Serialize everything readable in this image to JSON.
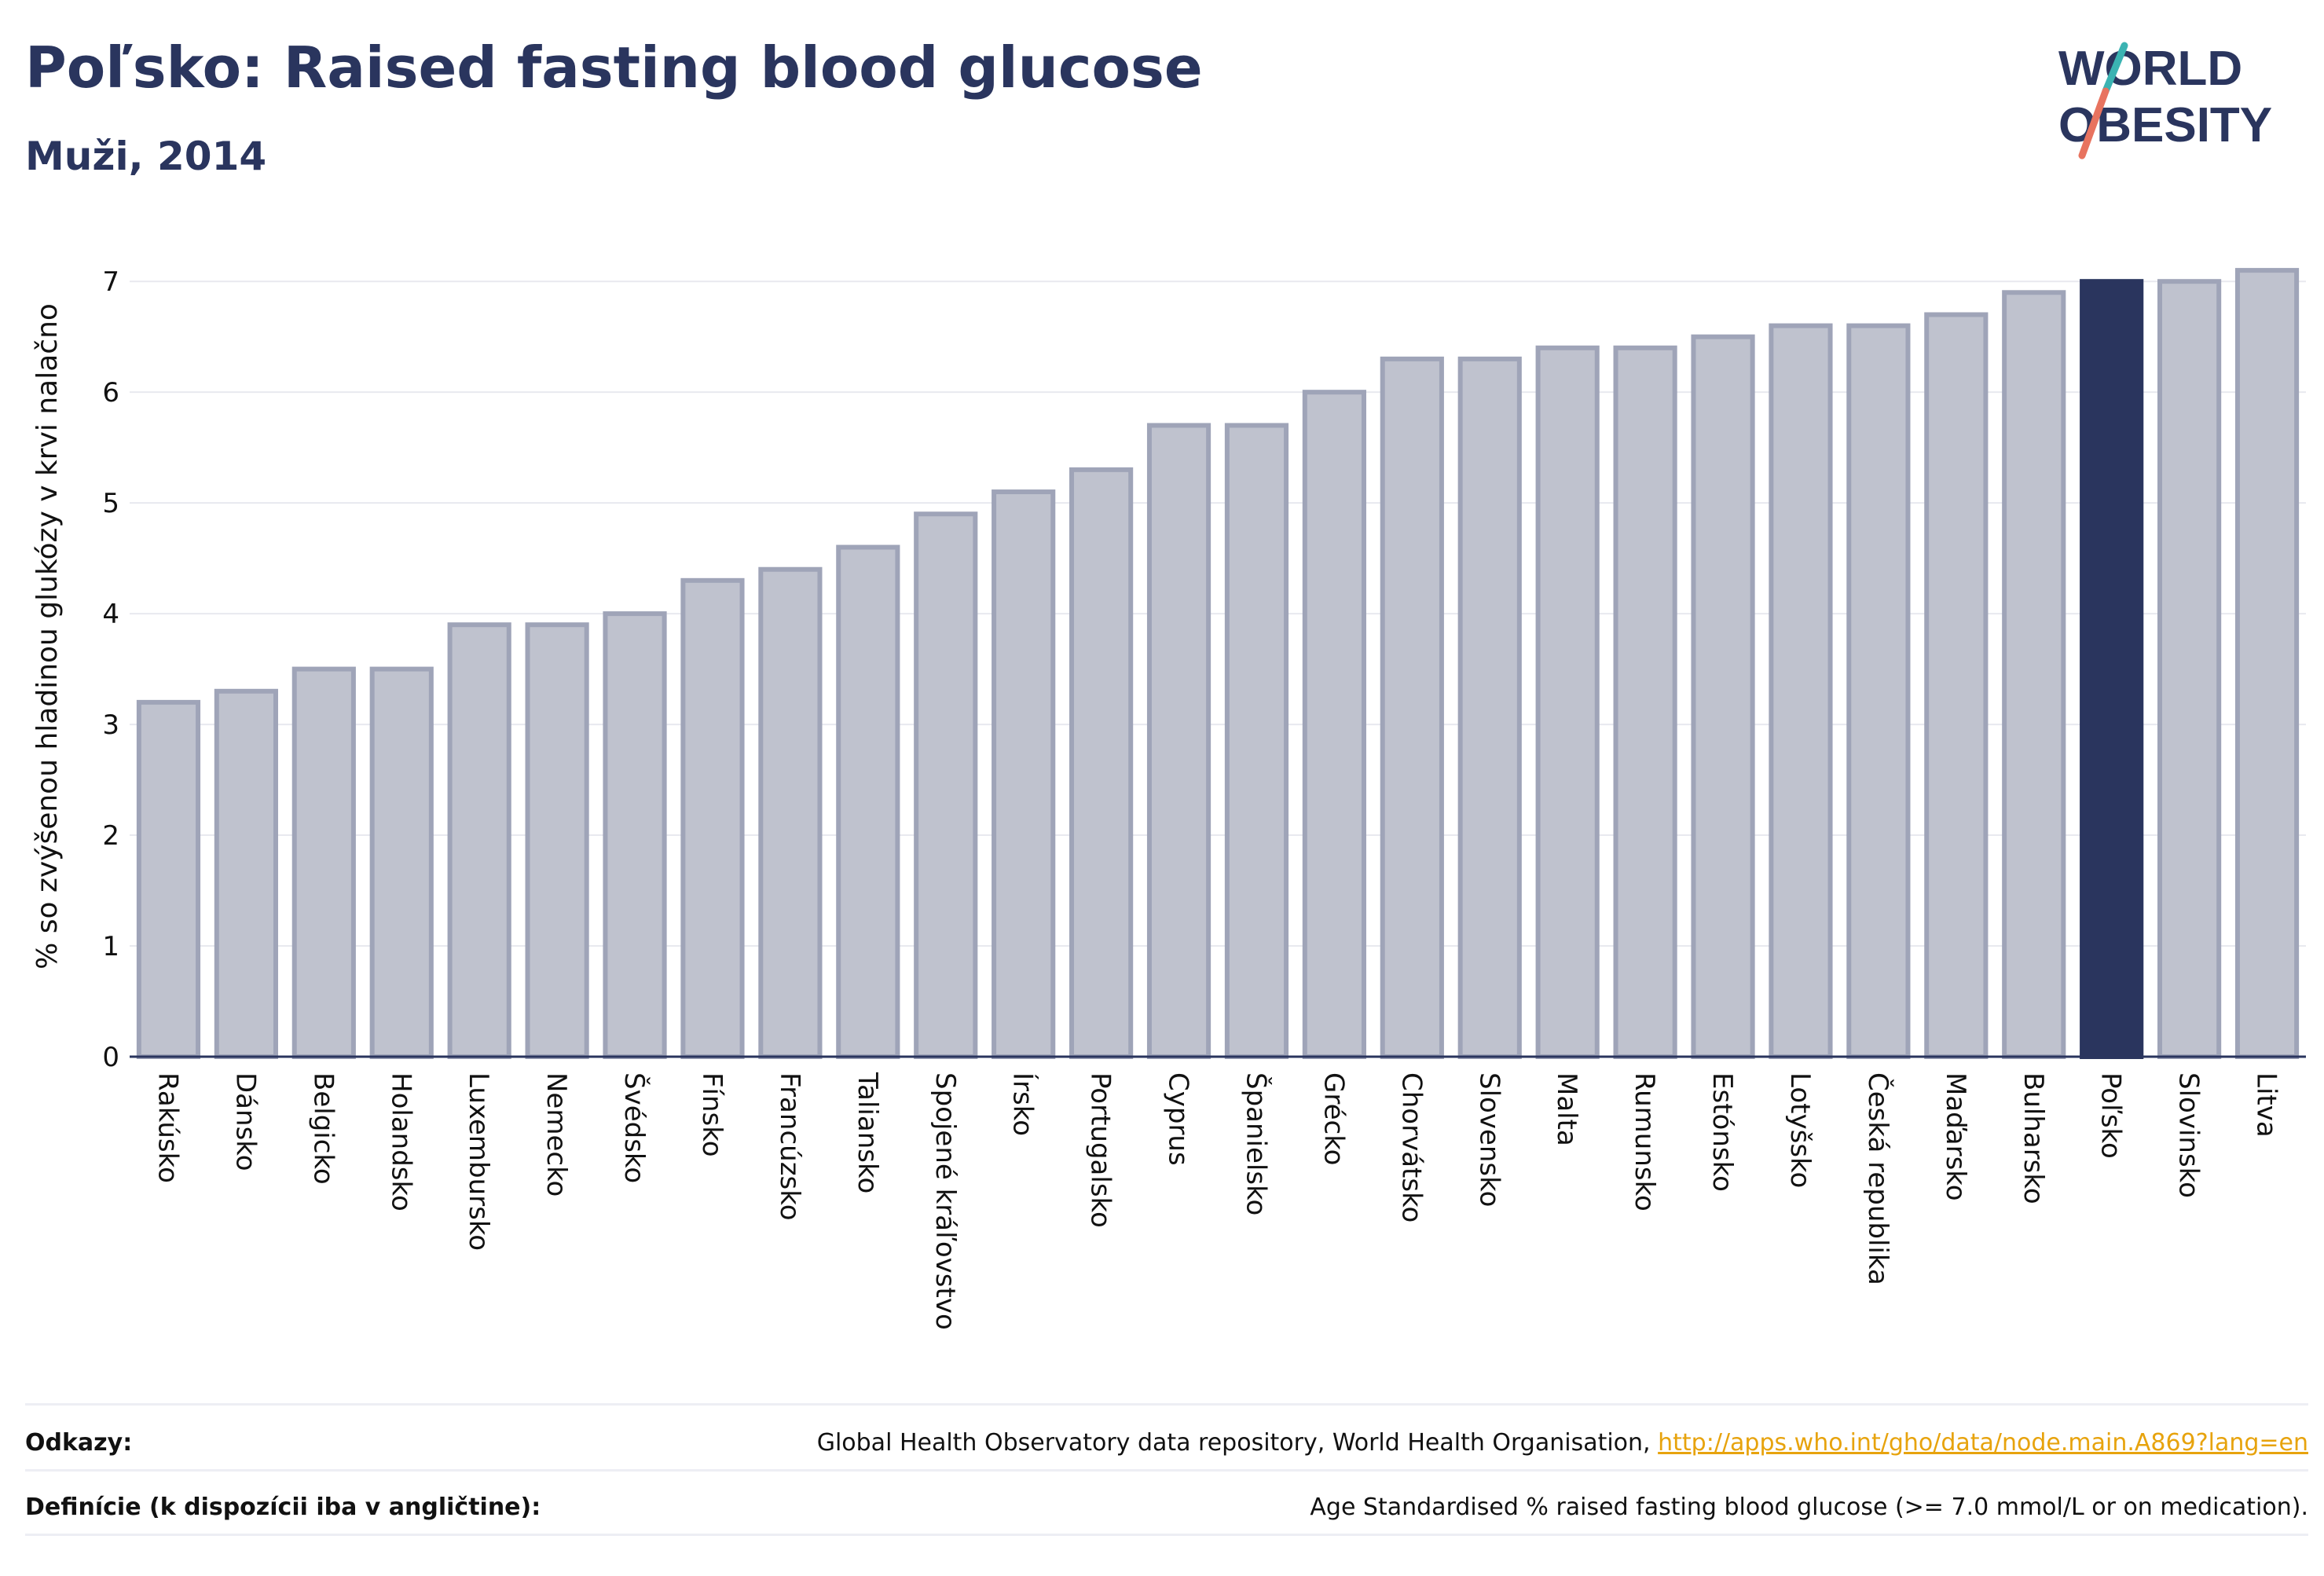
{
  "header": {
    "title": "Poľsko: Raised fasting blood glucose",
    "subtitle": "Muži, 2014"
  },
  "logo": {
    "line1": "WORLD",
    "line2": "OBESITY",
    "colors": {
      "text": "#2a355e",
      "slash_top": "#3bb3b2",
      "slash_bottom": "#e8735f"
    }
  },
  "chart_data": {
    "type": "bar",
    "ylabel": "% so zvýšenou hladinou glukózy v krvi nalačno",
    "xlabel": "",
    "ylim": [
      0,
      7.2
    ],
    "yticks": [
      0,
      1,
      2,
      3,
      4,
      5,
      6,
      7
    ],
    "grid": true,
    "highlight": "Poľsko",
    "colors": {
      "bar": "#bfc2ce",
      "bar_border": "#9fa4b8",
      "highlight": "#2a355e",
      "grid": "#e8e9ef",
      "axis": "#2a355e"
    },
    "categories": [
      "Rakúsko",
      "Dánsko",
      "Belgicko",
      "Holandsko",
      "Luxembursko",
      "Nemecko",
      "Švédsko",
      "Fínsko",
      "Francúzsko",
      "Taliansko",
      "Spojené kráľovstvo",
      "Írsko",
      "Portugalsko",
      "Cyprus",
      "Španielsko",
      "Grécko",
      "Chorvátsko",
      "Slovensko",
      "Malta",
      "Rumunsko",
      "Estónsko",
      "Lotyšsko",
      "Česká republika",
      "Maďarsko",
      "Bulharsko",
      "Poľsko",
      "Slovinsko",
      "Litva"
    ],
    "values": [
      3.2,
      3.3,
      3.5,
      3.5,
      3.9,
      3.9,
      4.0,
      4.3,
      4.4,
      4.6,
      4.9,
      5.1,
      5.3,
      5.7,
      5.7,
      6.0,
      6.3,
      6.3,
      6.4,
      6.4,
      6.5,
      6.6,
      6.6,
      6.7,
      6.9,
      7.0,
      7.0,
      7.1
    ]
  },
  "footer": {
    "references_label": "Odkazy:",
    "references_text": "Global Health Observatory data repository, World Health Organisation,",
    "references_link": "http://apps.who.int/gho/data/node.main.A869?lang=en",
    "definitions_label": "Definície (k dispozícii iba v angličtine):",
    "definitions_text": "Age Standardised % raised fasting blood glucose (>= 7.0 mmol/L or on medication)."
  }
}
